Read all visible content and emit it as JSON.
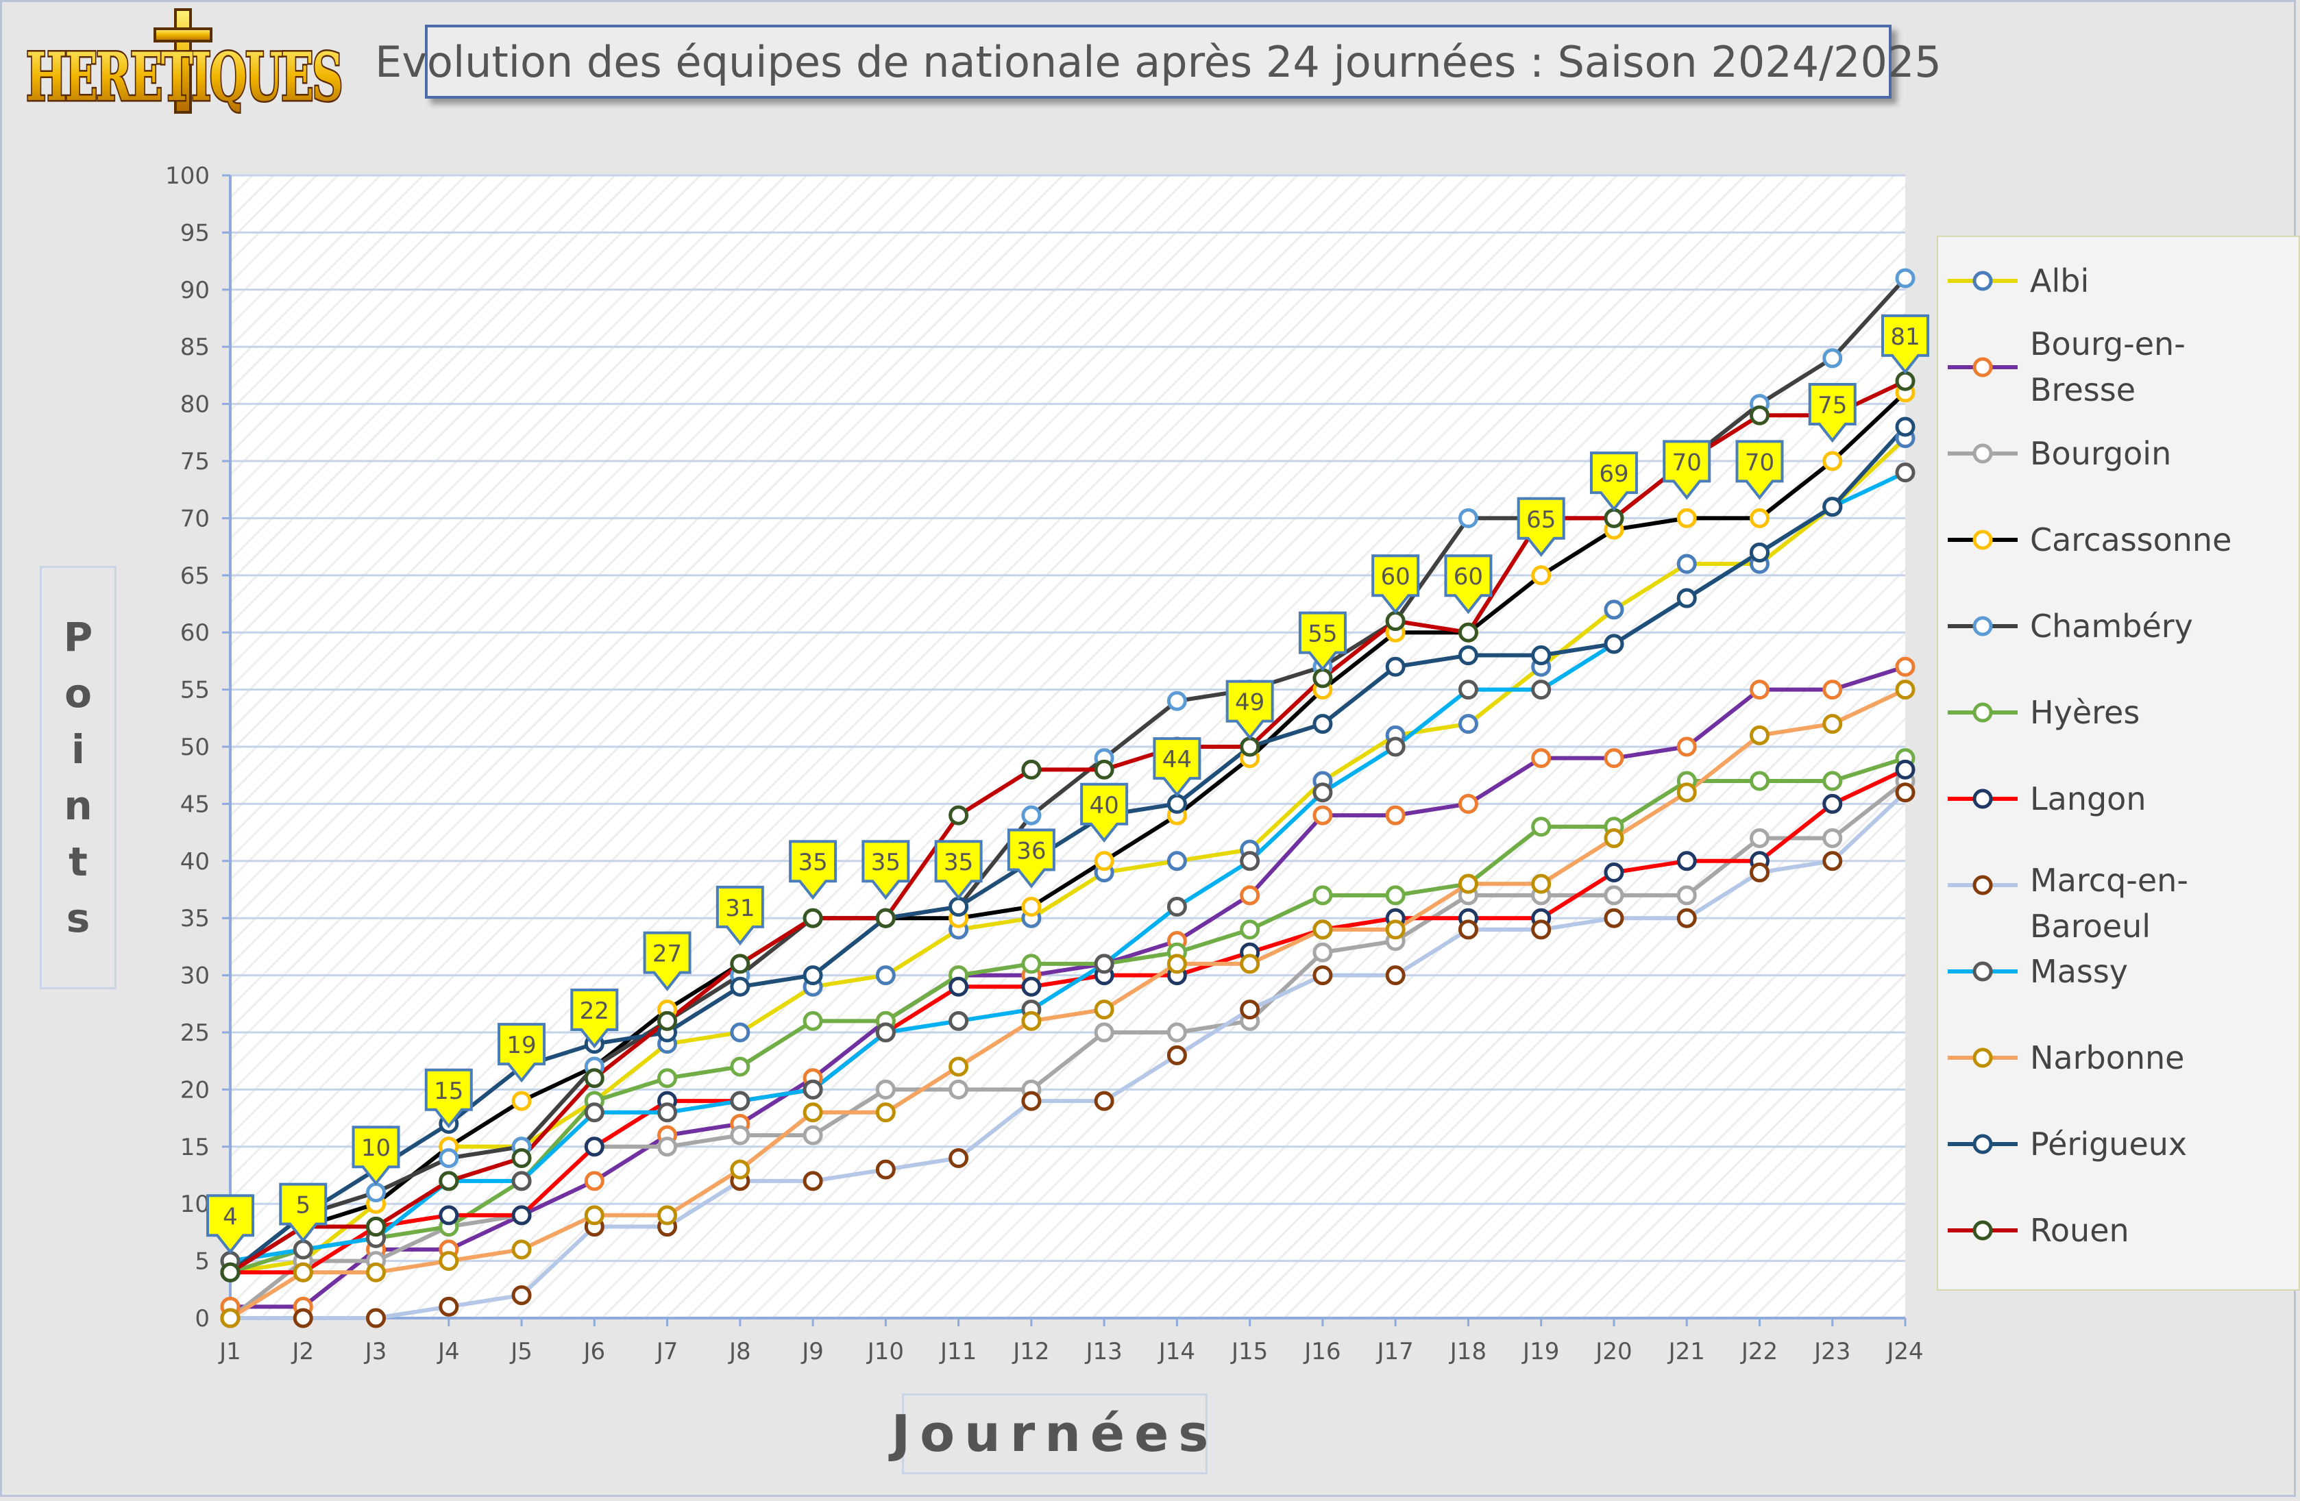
{
  "logo_text": "HERETIQUES",
  "title": "Evolution des équipes de nationale après 24 journées : Saison 2024/2025",
  "y_axis_label": "Points",
  "x_axis_label": "Journées",
  "colors": {
    "Albi": "#e6d800",
    "Bourg-en-Bresse": "#7030a0",
    "Bourgoin": "#a6a6a6",
    "Carcassonne": "#000000",
    "Chambéry": "#404040",
    "Hyères": "#70ad47",
    "Langon": "#ff0000",
    "Marcq-en-Baroeul": "#b4c7e7",
    "Massy": "#00b0f0",
    "Narbonne": "#f4a460",
    "Périgueux": "#1f4e79",
    "Rouen": "#c00000",
    "leader_marker": "#375623",
    "callout_fill": "#ffff00",
    "callout_border": "#4a7ebb"
  },
  "chart_data": {
    "type": "line",
    "title": "Evolution des équipes de nationale après 24 journées : Saison 2024/2025",
    "xlabel": "Journées",
    "ylabel": "Points",
    "ylim": [
      0,
      100
    ],
    "y_ticks": [
      0,
      5,
      10,
      15,
      20,
      25,
      30,
      35,
      40,
      45,
      50,
      55,
      60,
      65,
      70,
      75,
      80,
      85,
      90,
      95,
      100
    ],
    "grid": true,
    "legend_position": "right",
    "categories": [
      "J1",
      "J2",
      "J3",
      "J4",
      "J5",
      "J6",
      "J7",
      "J8",
      "J9",
      "J10",
      "J11",
      "J12",
      "J13",
      "J14",
      "J15",
      "J16",
      "J17",
      "J18",
      "J19",
      "J20",
      "J21",
      "J22",
      "J23",
      "J24"
    ],
    "series": [
      {
        "name": "Albi",
        "line_color": "#e6d800",
        "marker_color": "#4a7ebb",
        "values": [
          4,
          5,
          10,
          15,
          15,
          19,
          24,
          25,
          29,
          30,
          34,
          35,
          39,
          40,
          41,
          47,
          51,
          52,
          57,
          62,
          66,
          66,
          71,
          77
        ]
      },
      {
        "name": "Bourg-en-Bresse",
        "line_color": "#7030a0",
        "marker_color": "#ed7d31",
        "values": [
          1,
          1,
          6,
          6,
          9,
          12,
          16,
          17,
          21,
          26,
          30,
          30,
          31,
          33,
          37,
          44,
          44,
          45,
          49,
          49,
          50,
          55,
          55,
          57
        ]
      },
      {
        "name": "Bourgoin",
        "line_color": "#a6a6a6",
        "marker_color": "#a6a6a6",
        "values": [
          0,
          5,
          5,
          8,
          9,
          15,
          15,
          16,
          16,
          20,
          20,
          20,
          25,
          25,
          26,
          32,
          33,
          37,
          37,
          37,
          37,
          42,
          42,
          47
        ]
      },
      {
        "name": "Carcassonne",
        "line_color": "#000000",
        "marker_color": "#ffc000",
        "values": [
          4,
          8,
          10,
          15,
          19,
          22,
          27,
          31,
          35,
          35,
          35,
          36,
          40,
          44,
          49,
          55,
          60,
          60,
          65,
          69,
          70,
          70,
          75,
          81
        ]
      },
      {
        "name": "Chambéry",
        "line_color": "#404040",
        "marker_color": "#5b9bd5",
        "values": [
          4,
          9,
          11,
          14,
          15,
          22,
          26,
          30,
          35,
          35,
          36,
          44,
          49,
          54,
          55,
          57,
          61,
          70,
          70,
          70,
          75,
          80,
          84,
          91
        ]
      },
      {
        "name": "Hyères",
        "line_color": "#70ad47",
        "marker_color": "#70ad47",
        "values": [
          4,
          6,
          7,
          8,
          12,
          19,
          21,
          22,
          26,
          26,
          30,
          31,
          31,
          32,
          34,
          37,
          37,
          38,
          43,
          43,
          47,
          47,
          47,
          49
        ]
      },
      {
        "name": "Langon",
        "line_color": "#ff0000",
        "marker_color": "#1f3864",
        "values": [
          4,
          4,
          8,
          9,
          9,
          15,
          19,
          19,
          20,
          25,
          29,
          29,
          30,
          30,
          32,
          34,
          35,
          35,
          35,
          39,
          40,
          40,
          45,
          48
        ]
      },
      {
        "name": "Marcq-en-Baroeul",
        "line_color": "#b4c7e7",
        "marker_color": "#843c0c",
        "values": [
          0,
          0,
          0,
          1,
          2,
          8,
          8,
          12,
          12,
          13,
          14,
          19,
          19,
          23,
          27,
          30,
          30,
          34,
          34,
          35,
          35,
          39,
          40,
          46
        ]
      },
      {
        "name": "Massy",
        "line_color": "#00b0f0",
        "marker_color": "#595959",
        "values": [
          5,
          6,
          7,
          12,
          12,
          18,
          18,
          19,
          20,
          25,
          26,
          27,
          31,
          36,
          40,
          46,
          50,
          55,
          55,
          59,
          63,
          67,
          71,
          74
        ]
      },
      {
        "name": "Narbonne",
        "line_color": "#f4a460",
        "marker_color": "#bf8f00",
        "values": [
          0,
          4,
          4,
          5,
          6,
          9,
          9,
          13,
          18,
          18,
          22,
          26,
          27,
          31,
          31,
          34,
          34,
          38,
          38,
          42,
          46,
          51,
          52,
          55
        ]
      },
      {
        "name": "Périgueux",
        "line_color": "#1f4e79",
        "marker_color": "#1f4e79",
        "values": [
          4,
          9,
          13,
          17,
          22,
          24,
          25,
          29,
          30,
          35,
          36,
          40,
          44,
          45,
          50,
          52,
          57,
          58,
          58,
          59,
          63,
          67,
          71,
          78
        ]
      },
      {
        "name": "Rouen",
        "line_color": "#c00000",
        "marker_color": "#375623",
        "values": [
          4,
          8,
          8,
          12,
          14,
          21,
          26,
          31,
          35,
          35,
          44,
          48,
          48,
          50,
          50,
          56,
          61,
          60,
          70,
          70,
          75,
          79,
          79,
          82
        ]
      }
    ],
    "annotations": {
      "type": "leader_points_callouts",
      "values": [
        "4",
        "5",
        "10",
        "15",
        "19",
        "22",
        "27",
        "31",
        "35",
        "35",
        "35",
        "36",
        "40",
        "44",
        "49",
        "55",
        "60",
        "60",
        "65",
        "69",
        "70",
        "70",
        "75",
        "81"
      ]
    }
  }
}
